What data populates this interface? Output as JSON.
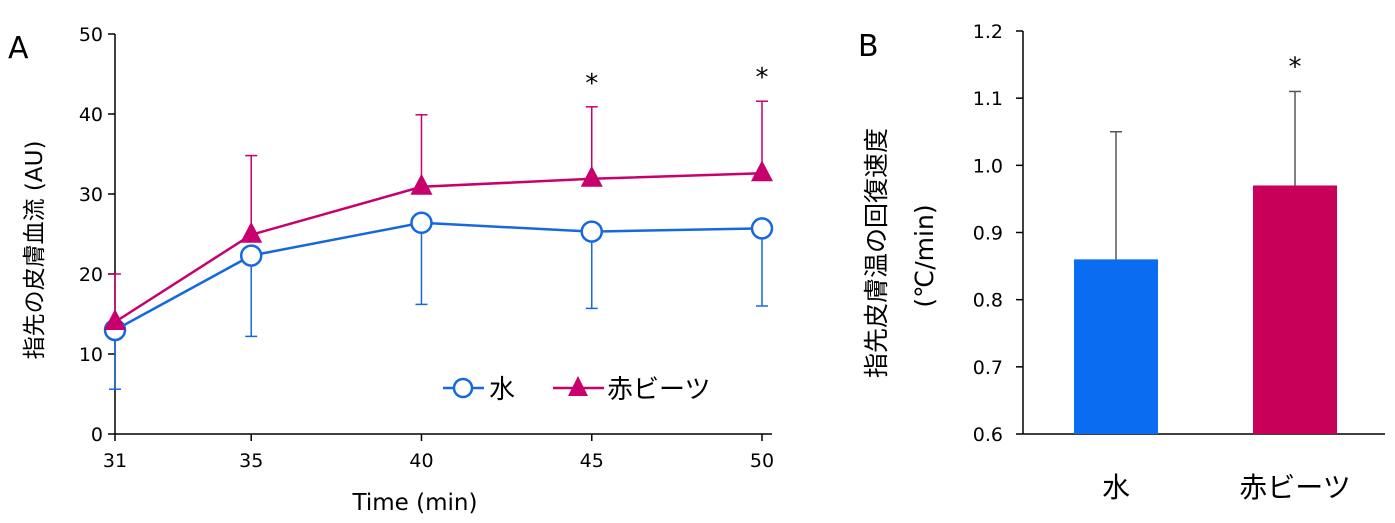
{
  "panels": {
    "a": {
      "label": "A"
    },
    "b": {
      "label": "B"
    }
  },
  "colors": {
    "water": "#1568e0",
    "beet": "#c8006e",
    "beet_bar": "#c8005a",
    "water_bar": "#0a6cf0",
    "axis": "#000000",
    "errorbar_b": "#555555"
  },
  "chart_data": [
    {
      "type": "line",
      "xlabel": "Time (min)",
      "ylabel": "指先の皮膚血流 (AU)",
      "x": [
        31,
        35,
        40,
        45,
        50
      ],
      "x_tick_labels": [
        "31",
        "35",
        "40",
        "45",
        "50"
      ],
      "ylim": [
        0,
        50
      ],
      "y_ticks": [
        0,
        10,
        20,
        30,
        40,
        50
      ],
      "grid": false,
      "legend_position": "bottom-right",
      "series": [
        {
          "name": "水",
          "marker": "circle",
          "values": [
            13,
            22.3,
            26.4,
            25.3,
            25.7
          ],
          "error": [
            7.4,
            10.1,
            10.2,
            9.6,
            9.7
          ],
          "error_direction": "down"
        },
        {
          "name": "赤ビーツ",
          "marker": "triangle",
          "values": [
            14,
            24.9,
            30.9,
            31.9,
            32.6
          ],
          "error": [
            6,
            9.9,
            9,
            9,
            9
          ],
          "error_direction": "up"
        }
      ],
      "significance": [
        {
          "x": 45,
          "label": "*"
        },
        {
          "x": 50,
          "label": "*"
        }
      ]
    },
    {
      "type": "bar",
      "ylabel_line1": "指先皮膚温の回復速度",
      "ylabel_line2": "(℃/min)",
      "categories": [
        "水",
        "赤ビーツ"
      ],
      "values": [
        0.86,
        0.97
      ],
      "error": [
        0.19,
        0.14
      ],
      "ylim": [
        0.6,
        1.2
      ],
      "y_ticks": [
        0.6,
        0.7,
        0.8,
        0.9,
        1.0,
        1.1,
        1.2
      ],
      "y_tick_labels": [
        "0.6",
        "0.7",
        "0.8",
        "0.9",
        "1.0",
        "1.1",
        "1.2"
      ],
      "grid": false,
      "significance": [
        {
          "category": "赤ビーツ",
          "label": "*"
        }
      ]
    }
  ]
}
